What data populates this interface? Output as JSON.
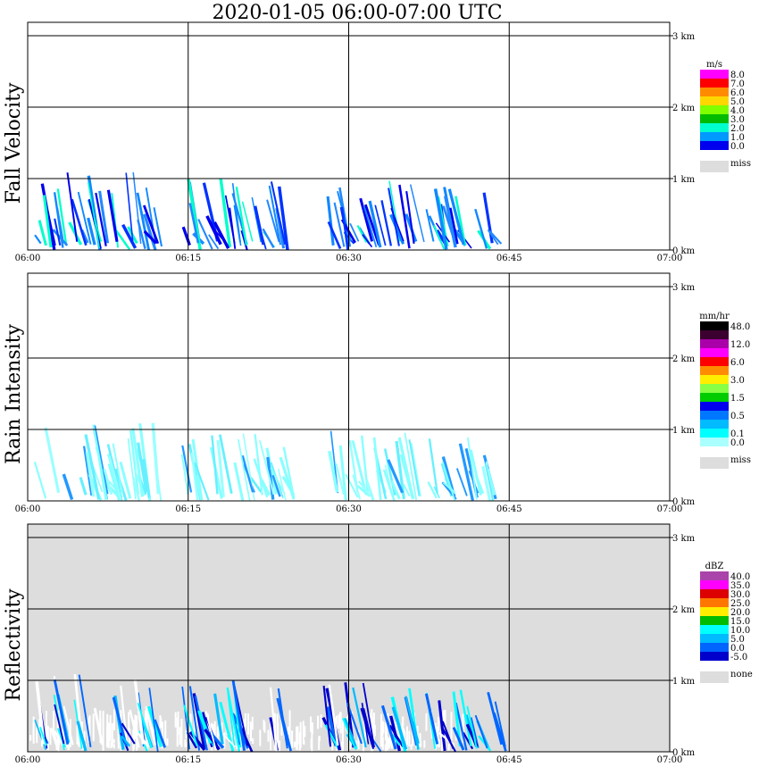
{
  "title": "2020-01-05   06:00-07:00 UTC",
  "x_ticks": [
    "06:00",
    "06:15",
    "06:30",
    "06:45",
    "07:00"
  ],
  "y_ticks": [
    "0 km",
    "1 km",
    "2 km",
    "3 km"
  ],
  "chart_data": [
    {
      "type": "heatmap",
      "ylabel": "Fall Velocity",
      "unit": "m/s",
      "ylim": [
        0,
        3
      ],
      "background": "#ffffff",
      "colorbar": [
        {
          "label": "8.0",
          "color": "#ff00ff"
        },
        {
          "label": "7.0",
          "color": "#ff0000"
        },
        {
          "label": "6.0",
          "color": "#ff8c00"
        },
        {
          "label": "5.0",
          "color": "#ffd700"
        },
        {
          "label": "4.0",
          "color": "#7fff00"
        },
        {
          "label": "3.0",
          "color": "#00bb00"
        },
        {
          "label": "2.0",
          "color": "#00ffcc"
        },
        {
          "label": "1.0",
          "color": "#0099ff"
        },
        {
          "label": "0.0",
          "color": "#0000ee"
        }
      ],
      "miss_label": "miss",
      "miss_color": "#dddddd",
      "echo_colors": [
        "#0000ee",
        "#0033ff",
        "#1188ff",
        "#2288ff",
        "#00ffcc"
      ]
    },
    {
      "type": "heatmap",
      "ylabel": "Rain Intensity",
      "unit": "mm/hr",
      "ylim": [
        0,
        3
      ],
      "background": "#ffffff",
      "colorbar": [
        {
          "label": "48.0",
          "color": "#000000"
        },
        {
          "label": "",
          "color": "#3c0030"
        },
        {
          "label": "12.0",
          "color": "#aa00aa"
        },
        {
          "label": "",
          "color": "#ff00ff"
        },
        {
          "label": "6.0",
          "color": "#ff0000"
        },
        {
          "label": "",
          "color": "#ff8c00"
        },
        {
          "label": "3.0",
          "color": "#ffee00"
        },
        {
          "label": "",
          "color": "#88ff44"
        },
        {
          "label": "1.5",
          "color": "#00cc00"
        },
        {
          "label": "",
          "color": "#0000ee"
        },
        {
          "label": "0.5",
          "color": "#0077ff"
        },
        {
          "label": "",
          "color": "#00bbff"
        },
        {
          "label": "0.1",
          "color": "#00ffff"
        },
        {
          "label": "0.0",
          "color": "#aaffff"
        }
      ],
      "miss_label": "miss",
      "miss_color": "#dddddd",
      "echo_colors": [
        "#88ffff",
        "#99ffff",
        "#66f0ff",
        "#88ffff",
        "#2299ff"
      ]
    },
    {
      "type": "heatmap",
      "ylabel": "Reflectivity",
      "unit": "dBZ",
      "ylim": [
        0,
        3
      ],
      "background": "#dddddd",
      "colorbar": [
        {
          "label": "40.0",
          "color": "#aa44aa"
        },
        {
          "label": "35.0",
          "color": "#ff00ff"
        },
        {
          "label": "30.0",
          "color": "#dd0000"
        },
        {
          "label": "25.0",
          "color": "#ff7700"
        },
        {
          "label": "20.0",
          "color": "#ffee00"
        },
        {
          "label": "15.0",
          "color": "#00bb00"
        },
        {
          "label": "10.0",
          "color": "#00ffff"
        },
        {
          "label": "5.0",
          "color": "#00bbff"
        },
        {
          "label": "0.0",
          "color": "#0066ff"
        },
        {
          "label": "-5.0",
          "color": "#0000cc"
        }
      ],
      "miss_label": "none",
      "miss_color": "#dddddd",
      "echo_colors": [
        "#ffffff",
        "#0000cc",
        "#0066ff",
        "#00ffff",
        "#00bbff"
      ]
    }
  ]
}
